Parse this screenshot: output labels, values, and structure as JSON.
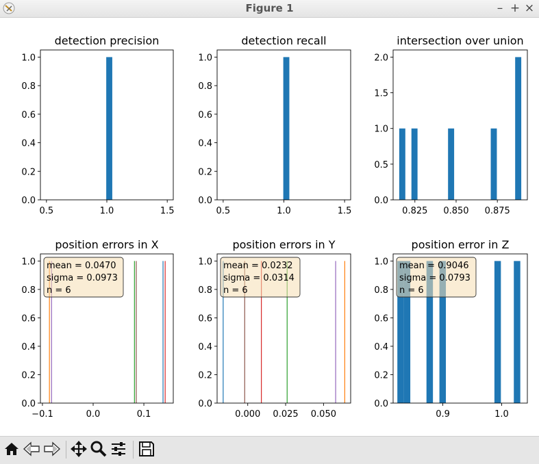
{
  "window": {
    "title": "Figure 1"
  },
  "window_buttons": {
    "minimize": "–",
    "maximize": "+",
    "close": "×"
  },
  "toolbar": {
    "icons": [
      "home-icon",
      "back-icon",
      "forward-icon",
      "pan-icon",
      "zoom-icon",
      "configure-subplots-icon",
      "save-icon"
    ]
  },
  "colors": {
    "bar": "#1f77b4",
    "legend_fill": "#f5deb3",
    "palette": [
      "#1f77b4",
      "#ff7f0e",
      "#2ca02c",
      "#d62728",
      "#9467bd",
      "#8c564b"
    ]
  },
  "chart_data": [
    {
      "type": "bar",
      "title": "detection precision",
      "xlim": [
        0.45,
        1.55
      ],
      "ylim": [
        0,
        1.05
      ],
      "xticks": [
        0.5,
        1.0,
        1.5
      ],
      "xtick_labels": [
        "0.5",
        "1.0",
        "1.5"
      ],
      "yticks": [
        0,
        0.2,
        0.4,
        0.6,
        0.8,
        1.0
      ],
      "ytick_labels": [
        "0.0",
        "0.2",
        "0.4",
        "0.6",
        "0.8",
        "1.0"
      ],
      "bars": [
        {
          "x0": 0.995,
          "x1": 1.045,
          "value": 1
        }
      ]
    },
    {
      "type": "bar",
      "title": "detection recall",
      "xlim": [
        0.45,
        1.55
      ],
      "ylim": [
        0,
        1.05
      ],
      "xticks": [
        0.5,
        1.0,
        1.5
      ],
      "xtick_labels": [
        "0.5",
        "1.0",
        "1.5"
      ],
      "yticks": [
        0,
        0.2,
        0.4,
        0.6,
        0.8,
        1.0
      ],
      "ytick_labels": [
        "0.0",
        "0.2",
        "0.4",
        "0.6",
        "0.8",
        "1.0"
      ],
      "bars": [
        {
          "x0": 0.995,
          "x1": 1.045,
          "value": 1
        }
      ]
    },
    {
      "type": "bar",
      "title": "intersection over union",
      "xlim": [
        0.8118,
        0.8932
      ],
      "ylim": [
        0,
        2.1
      ],
      "xticks": [
        0.825,
        0.85,
        0.875
      ],
      "xtick_labels": [
        "0.825",
        "0.850",
        "0.875"
      ],
      "yticks": [
        0,
        0.5,
        1.0,
        1.5,
        2.0
      ],
      "ytick_labels": [
        "0.0",
        "0.5",
        "1.0",
        "1.5",
        "2.0"
      ],
      "bars": [
        {
          "x0": 0.8155,
          "x1": 0.8192,
          "value": 1
        },
        {
          "x0": 0.8229,
          "x1": 0.8266,
          "value": 1
        },
        {
          "x0": 0.8451,
          "x1": 0.8488,
          "value": 1
        },
        {
          "x0": 0.871,
          "x1": 0.8747,
          "value": 1
        },
        {
          "x0": 0.8858,
          "x1": 0.8895,
          "value": 2
        }
      ]
    },
    {
      "type": "histogram-lines",
      "title": "position errors in X",
      "xlim": [
        -0.104,
        0.158
      ],
      "ylim": [
        0,
        1.05
      ],
      "xticks": [
        -0.1,
        0.0,
        0.1
      ],
      "xtick_labels": [
        "−0.1",
        "0.0",
        "0.1"
      ],
      "yticks": [
        0,
        0.2,
        0.4,
        0.6,
        0.8,
        1.0
      ],
      "ytick_labels": [
        "0.0",
        "0.2",
        "0.4",
        "0.6",
        "0.8",
        "1.0"
      ],
      "lines": [
        {
          "x": -0.0862,
          "color": "#ff7f0e"
        },
        {
          "x": -0.082,
          "color": "#9467bd"
        },
        {
          "x": 0.0815,
          "color": "#2ca02c"
        },
        {
          "x": 0.085,
          "color": "#8c564b"
        },
        {
          "x": 0.1378,
          "color": "#1f77b4"
        },
        {
          "x": 0.142,
          "color": "#d62728"
        }
      ],
      "stats": [
        "mean = 0.0470",
        "sigma = 0.0973",
        "n = 6"
      ]
    },
    {
      "type": "histogram-lines",
      "title": "position errors in Y",
      "xlim": [
        -0.0202,
        0.0679
      ],
      "ylim": [
        0,
        1.05
      ],
      "xticks": [
        0.0,
        0.025,
        0.05
      ],
      "xtick_labels": [
        "0.000",
        "0.025",
        "0.050"
      ],
      "yticks": [
        0,
        0.2,
        0.4,
        0.6,
        0.8,
        1.0
      ],
      "ytick_labels": [
        "0.0",
        "0.2",
        "0.4",
        "0.6",
        "0.8",
        "1.0"
      ],
      "lines": [
        {
          "x": -0.0162,
          "color": "#1f77b4"
        },
        {
          "x": -0.002,
          "color": "#8c564b"
        },
        {
          "x": 0.009,
          "color": "#d62728"
        },
        {
          "x": 0.026,
          "color": "#2ca02c"
        },
        {
          "x": 0.058,
          "color": "#9467bd"
        },
        {
          "x": 0.064,
          "color": "#ff7f0e"
        }
      ],
      "stats": [
        "mean = 0.0232",
        "sigma = 0.0314",
        "n = 6"
      ]
    },
    {
      "type": "bar",
      "title": "position error in Z",
      "xlim": [
        0.8155,
        1.0437
      ],
      "ylim": [
        0,
        1.05
      ],
      "xticks": [
        0.9,
        1.0
      ],
      "xtick_labels": [
        "0.9",
        "1.0"
      ],
      "yticks": [
        0,
        0.2,
        0.4,
        0.6,
        0.8,
        1.0
      ],
      "ytick_labels": [
        "0.0",
        "0.2",
        "0.4",
        "0.6",
        "0.8",
        "1.0"
      ],
      "bars": [
        {
          "x0": 0.8227,
          "x1": 0.8337,
          "value": 1
        },
        {
          "x0": 0.8337,
          "x1": 0.8447,
          "value": 1
        },
        {
          "x0": 0.8722,
          "x1": 0.8832,
          "value": 1
        },
        {
          "x0": 0.8942,
          "x1": 0.9052,
          "value": 1
        },
        {
          "x0": 0.9877,
          "x1": 0.9987,
          "value": 1
        },
        {
          "x0": 1.0207,
          "x1": 1.0317,
          "value": 1
        }
      ],
      "stats": [
        "mean = 0.9046",
        "sigma = 0.0793",
        "n = 6"
      ]
    }
  ]
}
